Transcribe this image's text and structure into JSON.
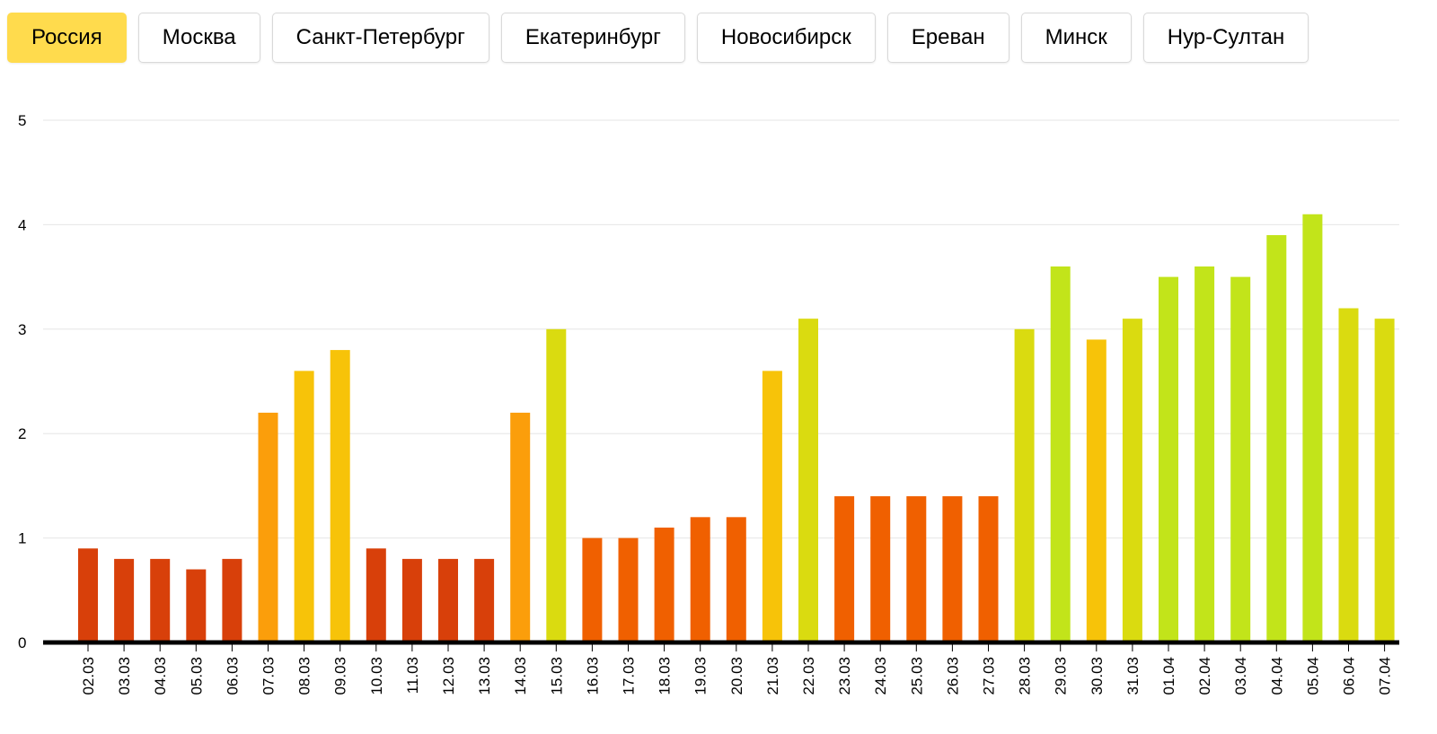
{
  "tabs": [
    {
      "label": "Россия",
      "active": true
    },
    {
      "label": "Москва",
      "active": false
    },
    {
      "label": "Санкт-Петербург",
      "active": false
    },
    {
      "label": "Екатеринбург",
      "active": false
    },
    {
      "label": "Новосибирск",
      "active": false
    },
    {
      "label": "Ереван",
      "active": false
    },
    {
      "label": "Минск",
      "active": false
    },
    {
      "label": "Нур-Султан",
      "active": false
    }
  ],
  "colors": {
    "active_tab": "#ffdb4d",
    "scale": [
      "#c0250c",
      "#d8400a",
      "#f06000",
      "#fa8000",
      "#fb9e0b",
      "#f7c309",
      "#dadb10",
      "#c2e41a"
    ]
  },
  "chart_data": {
    "type": "bar",
    "title": "",
    "xlabel": "",
    "ylabel": "",
    "ylim": [
      0,
      5
    ],
    "yticks": [
      0,
      1,
      2,
      3,
      4,
      5
    ],
    "grid": true,
    "categories": [
      "02.03",
      "03.03",
      "04.03",
      "05.03",
      "06.03",
      "07.03",
      "08.03",
      "09.03",
      "10.03",
      "11.03",
      "12.03",
      "13.03",
      "14.03",
      "15.03",
      "16.03",
      "17.03",
      "18.03",
      "19.03",
      "20.03",
      "21.03",
      "22.03",
      "23.03",
      "24.03",
      "25.03",
      "26.03",
      "27.03",
      "28.03",
      "29.03",
      "30.03",
      "31.03",
      "01.04",
      "02.04",
      "03.04",
      "04.04",
      "05.04",
      "06.04",
      "07.04"
    ],
    "values": [
      0.9,
      0.8,
      0.8,
      0.7,
      0.8,
      2.2,
      2.6,
      2.8,
      0.9,
      0.8,
      0.8,
      0.8,
      2.2,
      3.0,
      1.0,
      1.0,
      1.1,
      1.2,
      1.2,
      2.6,
      3.1,
      1.4,
      1.4,
      1.4,
      1.4,
      1.4,
      3.0,
      3.6,
      2.9,
      3.1,
      3.5,
      3.6,
      3.5,
      3.9,
      4.1,
      3.2,
      3.1
    ]
  }
}
